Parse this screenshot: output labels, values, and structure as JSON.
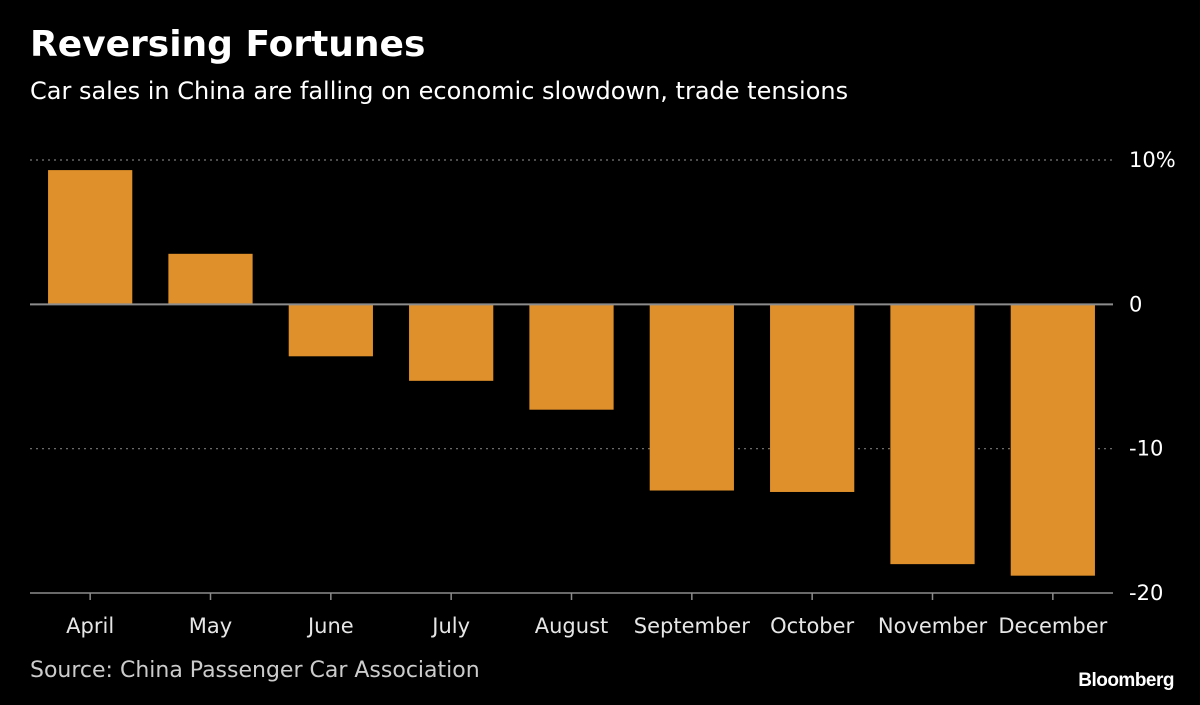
{
  "header": {
    "title": "Reversing Fortunes",
    "subtitle": "Car sales in China are falling on economic slowdown, trade tensions"
  },
  "footer": {
    "source": "Source: China Passenger Car Association",
    "brand": "Bloomberg"
  },
  "colors": {
    "bar": "#E0902B",
    "background": "#000000",
    "grid": "#7a7a7a",
    "axis": "#8c8c8c"
  },
  "chart_data": {
    "type": "bar",
    "categories": [
      "April",
      "May",
      "June",
      "July",
      "August",
      "September",
      "October",
      "November",
      "December"
    ],
    "values": [
      9.3,
      3.5,
      -3.6,
      -5.3,
      -7.3,
      -12.9,
      -13.0,
      -18.0,
      -18.8
    ],
    "ylim": [
      -20,
      10
    ],
    "yticks": [
      10,
      0,
      -10,
      -20
    ],
    "ytick_labels": [
      "10%",
      "0",
      "-10",
      "-20"
    ],
    "grid": true,
    "y_axis_side": "right"
  }
}
